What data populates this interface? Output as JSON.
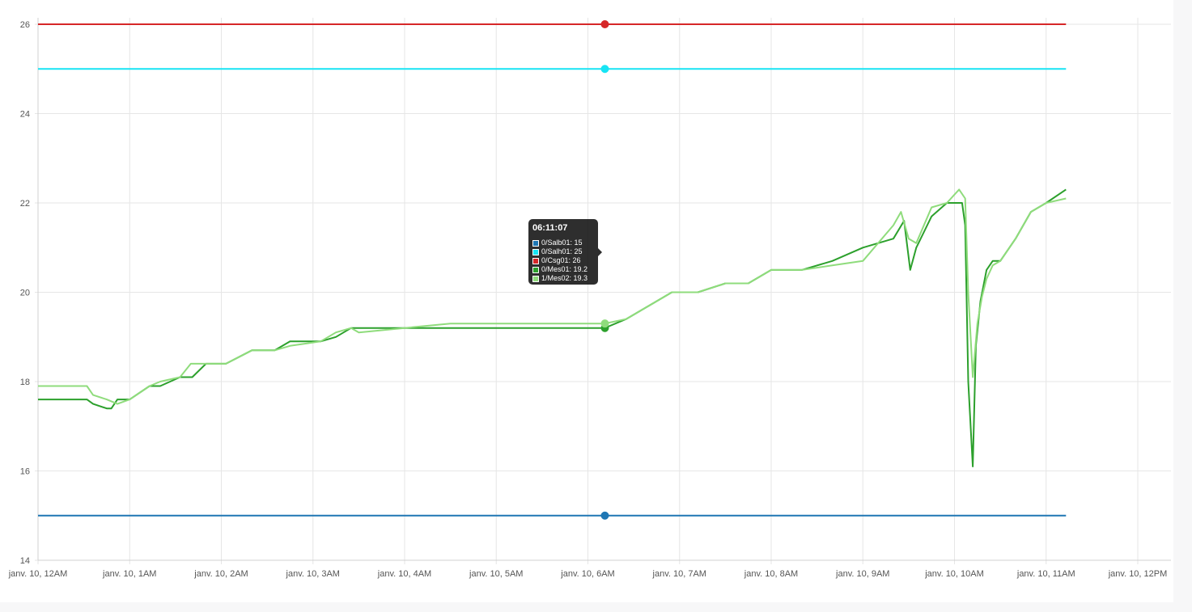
{
  "chart_data": {
    "type": "line",
    "ylim": [
      14,
      26
    ],
    "xlim": [
      "2024-01-10T00:00",
      "2024-01-10T12:00"
    ],
    "yticks": [
      "14",
      "16",
      "18",
      "20",
      "22",
      "24",
      "26"
    ],
    "xticks": [
      "janv. 10, 12AM",
      "janv. 10, 1AM",
      "janv. 10, 2AM",
      "janv. 10, 3AM",
      "janv. 10, 4AM",
      "janv. 10, 5AM",
      "janv. 10, 6AM",
      "janv. 10, 7AM",
      "janv. 10, 8AM",
      "janv. 10, 9AM",
      "janv. 10, 10AM",
      "janv. 10, 11AM",
      "janv. 10, 12PM"
    ],
    "grid": true,
    "series": [
      {
        "name": "0/Salb01",
        "color": "#1f77b4",
        "x": [
          "2024-01-10T00:00",
          "2024-01-10T11:13"
        ],
        "y": [
          15,
          15
        ]
      },
      {
        "name": "0/Salh01",
        "color": "#17e4f4",
        "x": [
          "2024-01-10T00:00",
          "2024-01-10T11:13"
        ],
        "y": [
          25,
          25
        ]
      },
      {
        "name": "0/Csg01",
        "color": "#d62728",
        "x": [
          "2024-01-10T00:00",
          "2024-01-10T11:13"
        ],
        "y": [
          26,
          26
        ]
      },
      {
        "name": "0/Mes01",
        "color": "#2ca02c",
        "x": [
          "2024-01-10T00:00",
          "2024-01-10T00:32",
          "2024-01-10T00:36",
          "2024-01-10T00:45",
          "2024-01-10T00:48",
          "2024-01-10T00:52",
          "2024-01-10T00:55",
          "2024-01-10T01:00",
          "2024-01-10T01:13",
          "2024-01-10T01:20",
          "2024-01-10T01:33",
          "2024-01-10T01:41",
          "2024-01-10T01:50",
          "2024-01-10T02:03",
          "2024-01-10T02:20",
          "2024-01-10T02:35",
          "2024-01-10T02:45",
          "2024-01-10T03:05",
          "2024-01-10T03:15",
          "2024-01-10T03:25",
          "2024-01-10T03:30",
          "2024-01-10T04:00",
          "2024-01-10T04:30",
          "2024-01-10T05:00",
          "2024-01-10T05:30",
          "2024-01-10T06:00",
          "2024-01-10T06:11",
          "2024-01-10T06:25",
          "2024-01-10T06:40",
          "2024-01-10T06:55",
          "2024-01-10T07:12",
          "2024-01-10T07:30",
          "2024-01-10T07:45",
          "2024-01-10T08:00",
          "2024-01-10T08:20",
          "2024-01-10T08:40",
          "2024-01-10T09:00",
          "2024-01-10T09:20",
          "2024-01-10T09:27",
          "2024-01-10T09:31",
          "2024-01-10T09:35",
          "2024-01-10T09:45",
          "2024-01-10T09:55",
          "2024-01-10T10:05",
          "2024-01-10T10:07",
          "2024-01-10T10:09",
          "2024-01-10T10:12",
          "2024-01-10T10:14",
          "2024-01-10T10:17",
          "2024-01-10T10:21",
          "2024-01-10T10:25",
          "2024-01-10T10:30",
          "2024-01-10T10:40",
          "2024-01-10T10:50",
          "2024-01-10T11:00",
          "2024-01-10T11:13"
        ],
        "y": [
          17.6,
          17.6,
          17.5,
          17.4,
          17.4,
          17.6,
          17.6,
          17.6,
          17.9,
          17.9,
          18.1,
          18.1,
          18.4,
          18.4,
          18.7,
          18.7,
          18.9,
          18.9,
          19.0,
          19.2,
          19.2,
          19.2,
          19.2,
          19.2,
          19.2,
          19.2,
          19.2,
          19.4,
          19.7,
          20.0,
          20.0,
          20.2,
          20.2,
          20.5,
          20.5,
          20.7,
          21.0,
          21.2,
          21.6,
          20.5,
          21.0,
          21.7,
          22.0,
          22.0,
          21.5,
          18.0,
          16.1,
          18.8,
          19.8,
          20.5,
          20.7,
          20.7,
          21.2,
          21.8,
          22.0,
          22.3
        ]
      },
      {
        "name": "1/Mes02",
        "color": "#8fdc7c",
        "x": [
          "2024-01-10T00:00",
          "2024-01-10T00:32",
          "2024-01-10T00:36",
          "2024-01-10T00:45",
          "2024-01-10T00:52",
          "2024-01-10T01:00",
          "2024-01-10T01:13",
          "2024-01-10T01:20",
          "2024-01-10T01:33",
          "2024-01-10T01:40",
          "2024-01-10T01:50",
          "2024-01-10T02:03",
          "2024-01-10T02:20",
          "2024-01-10T02:35",
          "2024-01-10T02:45",
          "2024-01-10T03:05",
          "2024-01-10T03:15",
          "2024-01-10T03:25",
          "2024-01-10T03:30",
          "2024-01-10T04:00",
          "2024-01-10T04:30",
          "2024-01-10T05:00",
          "2024-01-10T05:30",
          "2024-01-10T06:00",
          "2024-01-10T06:11",
          "2024-01-10T06:25",
          "2024-01-10T06:40",
          "2024-01-10T06:55",
          "2024-01-10T07:12",
          "2024-01-10T07:30",
          "2024-01-10T07:45",
          "2024-01-10T08:00",
          "2024-01-10T08:20",
          "2024-01-10T08:40",
          "2024-01-10T09:00",
          "2024-01-10T09:20",
          "2024-01-10T09:25",
          "2024-01-10T09:30",
          "2024-01-10T09:35",
          "2024-01-10T09:45",
          "2024-01-10T09:55",
          "2024-01-10T10:03",
          "2024-01-10T10:07",
          "2024-01-10T10:09",
          "2024-01-10T10:12",
          "2024-01-10T10:15",
          "2024-01-10T10:18",
          "2024-01-10T10:21",
          "2024-01-10T10:25",
          "2024-01-10T10:30",
          "2024-01-10T10:40",
          "2024-01-10T10:50",
          "2024-01-10T11:00",
          "2024-01-10T11:13"
        ],
        "y": [
          17.9,
          17.9,
          17.7,
          17.6,
          17.5,
          17.6,
          17.9,
          18.0,
          18.1,
          18.4,
          18.4,
          18.4,
          18.7,
          18.7,
          18.8,
          18.9,
          19.1,
          19.2,
          19.1,
          19.2,
          19.3,
          19.3,
          19.3,
          19.3,
          19.3,
          19.4,
          19.7,
          20.0,
          20.0,
          20.2,
          20.2,
          20.5,
          20.5,
          20.6,
          20.7,
          21.5,
          21.8,
          21.2,
          21.1,
          21.9,
          22.0,
          22.3,
          22.1,
          20.0,
          18.1,
          19.3,
          19.9,
          20.3,
          20.6,
          20.7,
          21.2,
          21.8,
          22.0,
          22.1
        ]
      }
    ],
    "hover": {
      "index_time": "2024-01-10T06:11:07"
    }
  },
  "tooltip": {
    "title": "06:11:07",
    "rows": [
      {
        "label": "0/Salb01: 15",
        "color": "#1f77b4"
      },
      {
        "label": "0/Salh01: 25",
        "color": "#17e4f4"
      },
      {
        "label": "0/Csg01: 26",
        "color": "#d62728"
      },
      {
        "label": "0/Mes01: 19.2",
        "color": "#2ca02c"
      },
      {
        "label": "1/Mes02: 19.3",
        "color": "#8fdc7c"
      }
    ]
  }
}
